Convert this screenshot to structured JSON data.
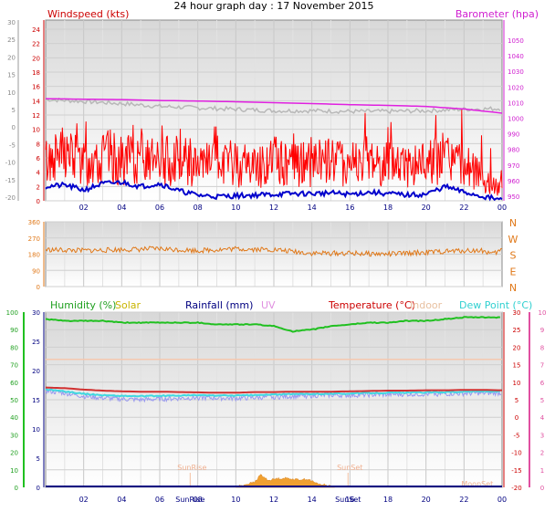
{
  "title": "24 hour graph day : 17 November 2015",
  "chart_data": [
    {
      "type": "line",
      "panel": "wind-barometer",
      "left_label": "Windspeed (kts)",
      "right_label": "Barometer (hpa)",
      "x_ticks": [
        "02",
        "04",
        "06",
        "08",
        "10",
        "12",
        "14",
        "16",
        "18",
        "20",
        "22",
        "00"
      ],
      "outer_left_ticks": [
        "30",
        "25",
        "20",
        "15",
        "10",
        "5",
        "0",
        "-5",
        "-10",
        "-15",
        "-20"
      ],
      "left_ticks": [
        "24",
        "22",
        "20",
        "18",
        "16",
        "14",
        "12",
        "10",
        "8",
        "6",
        "4",
        "2",
        "0"
      ],
      "right_ticks": [
        "1050",
        "1040",
        "1030",
        "1020",
        "1010",
        "1000",
        "990",
        "980",
        "970",
        "960",
        "950"
      ],
      "ylim_left": [
        0,
        25
      ],
      "ylim_right": [
        950,
        1050
      ],
      "series": [
        {
          "color": "#b8b8b8",
          "hours": [
            0,
            2,
            4,
            6,
            8,
            10,
            12,
            14,
            16,
            18,
            20,
            22,
            24
          ],
          "values": [
            14.2,
            13.9,
            13.6,
            13.2,
            13.0,
            12.8,
            12.6,
            12.6,
            12.5,
            12.5,
            12.6,
            12.8,
            12.9
          ]
        },
        {
          "color": "#e020e0",
          "hours": [
            0,
            2,
            4,
            6,
            8,
            10,
            12,
            14,
            16,
            18,
            20,
            22,
            24
          ],
          "values": [
            1006.5,
            1006.2,
            1006.0,
            1005.5,
            1005.2,
            1004.8,
            1004.3,
            1003.8,
            1003.2,
            1002.8,
            1002.2,
            1000.8,
            998.5
          ]
        },
        {
          "color": "#ff0000",
          "hours": [
            0,
            1,
            2,
            3,
            4,
            5,
            6,
            7,
            8,
            9,
            10,
            11,
            12,
            13,
            14,
            15,
            16,
            17,
            18,
            19,
            20,
            21,
            22,
            23,
            24
          ],
          "values": [
            5.5,
            6.8,
            5.2,
            6.5,
            5.4,
            6.2,
            5.0,
            6.4,
            4.6,
            5.0,
            5.3,
            4.9,
            5.5,
            5.0,
            5.5,
            5.7,
            5.2,
            5.9,
            5.2,
            5.0,
            5.2,
            5.8,
            4.9,
            3.2,
            1.6
          ]
        },
        {
          "color": "#0000cc",
          "hours": [
            0,
            1,
            2,
            3,
            4,
            5,
            6,
            7,
            8,
            9,
            10,
            11,
            12,
            13,
            14,
            15,
            16,
            17,
            18,
            19,
            20,
            21,
            22,
            23,
            24
          ],
          "values": [
            2.0,
            2.2,
            1.5,
            2.4,
            2.6,
            2.0,
            2.4,
            1.4,
            0.8,
            0.6,
            0.7,
            0.8,
            0.9,
            1.0,
            1.0,
            1.1,
            0.9,
            1.2,
            1.0,
            0.8,
            0.9,
            2.0,
            1.2,
            0.6,
            0.1
          ]
        }
      ]
    },
    {
      "type": "line",
      "panel": "wind-direction",
      "left_ticks": [
        "360",
        "270",
        "180",
        "90",
        "0"
      ],
      "right_ticks": [
        "N",
        "W",
        "S",
        "E",
        "N"
      ],
      "ylim": [
        0,
        360
      ],
      "series": [
        {
          "color": "#e07818",
          "hours": [
            0,
            2,
            4,
            6,
            8,
            10,
            12,
            14,
            16,
            18,
            20,
            22,
            23,
            23.5,
            24
          ],
          "values": [
            205,
            200,
            205,
            210,
            200,
            210,
            205,
            185,
            185,
            180,
            190,
            200,
            200,
            180,
            205
          ]
        }
      ]
    },
    {
      "type": "line",
      "panel": "temperature-humidity",
      "legend": [
        {
          "label": "Humidity (%)",
          "color": "#20a020"
        },
        {
          "label": "Solar",
          "color": "#c8b400"
        },
        {
          "label": "Rainfall (mm)",
          "color": "#000080"
        },
        {
          "label": "UV",
          "color": "#e090e0"
        },
        {
          "label": "Temperature (°C)",
          "color": "#cc0000"
        },
        {
          "label": "Indoor",
          "color": "#e8c0a0"
        },
        {
          "label": "Dew Point (°C)",
          "color": "#30d0d0"
        }
      ],
      "outer_left_ticks": [
        "100",
        "90",
        "80",
        "70",
        "60",
        "50",
        "40",
        "30",
        "20",
        "10",
        "0"
      ],
      "left_ticks": [
        "30",
        "25",
        "20",
        "15",
        "10",
        "5",
        "0"
      ],
      "right_ticks": [
        "30",
        "25",
        "20",
        "15",
        "10",
        "5",
        "0",
        "-5",
        "-10",
        "-15",
        "-20"
      ],
      "outer_right_ticks": [
        "10",
        "9",
        "8",
        "7",
        "6",
        "5",
        "4",
        "3",
        "2",
        "1",
        "0"
      ],
      "annotations": [
        "SunRise",
        "SunSet",
        "MoonSet"
      ],
      "x_ticks": [
        "02",
        "04",
        "06",
        "SunRise",
        "08",
        "10",
        "12",
        "14",
        "16",
        "SunSet",
        "18",
        "20",
        "22",
        "00"
      ],
      "ylim_humidity": [
        0,
        100
      ],
      "ylim_temperature": [
        -20,
        30
      ],
      "series": [
        {
          "color": "#20c020",
          "hours": [
            0,
            1,
            2,
            3,
            4,
            5,
            6,
            7,
            8,
            9,
            10,
            11,
            12,
            13,
            14,
            15,
            16,
            17,
            18,
            19,
            20,
            21,
            22,
            23,
            24
          ],
          "values": [
            96,
            95,
            95,
            95,
            94,
            94,
            94,
            94,
            94,
            93,
            93,
            93,
            92,
            89,
            90,
            92,
            93,
            94,
            94,
            95,
            95,
            96,
            97,
            97,
            97
          ]
        },
        {
          "color": "#f4c8b0",
          "hours": [
            0,
            24
          ],
          "values": [
            16.5,
            16.5
          ]
        },
        {
          "color": "#d03030",
          "hours": [
            0,
            1,
            2,
            3,
            4,
            5,
            6,
            7,
            8,
            9,
            10,
            11,
            12,
            13,
            14,
            15,
            16,
            17,
            18,
            19,
            20,
            21,
            22,
            23,
            24
          ],
          "values": [
            8.5,
            8.3,
            7.9,
            7.6,
            7.4,
            7.3,
            7.3,
            7.2,
            7.1,
            7.0,
            7.0,
            7.2,
            7.2,
            7.3,
            7.3,
            7.3,
            7.4,
            7.5,
            7.6,
            7.6,
            7.7,
            7.7,
            7.8,
            7.8,
            7.7
          ]
        },
        {
          "color": "#9898f0",
          "hours": [
            0,
            1,
            2,
            3,
            4,
            5,
            6,
            7,
            8,
            9,
            10,
            11,
            12,
            13,
            14,
            15,
            16,
            17,
            18,
            19,
            20,
            21,
            22,
            23,
            24
          ],
          "values": [
            7.5,
            6.9,
            6.0,
            5.5,
            5.2,
            5.0,
            5.2,
            5.4,
            5.6,
            5.5,
            5.4,
            5.6,
            5.8,
            6.0,
            6.2,
            6.3,
            6.3,
            6.4,
            6.5,
            6.6,
            6.6,
            6.7,
            6.8,
            6.9,
            6.9
          ]
        },
        {
          "color": "#40d8e0",
          "hours": [
            0,
            1,
            2,
            3,
            4,
            5,
            6,
            7,
            8,
            9,
            10,
            11,
            12,
            13,
            14,
            15,
            16,
            17,
            18,
            19,
            20,
            21,
            22,
            23,
            24
          ],
          "values": [
            8.0,
            7.4,
            6.7,
            6.3,
            6.1,
            6.0,
            6.1,
            6.2,
            6.3,
            6.2,
            6.2,
            6.3,
            6.5,
            6.6,
            6.7,
            6.7,
            6.8,
            6.9,
            7.0,
            7.0,
            7.1,
            7.2,
            7.3,
            7.4,
            7.3
          ]
        }
      ],
      "solar": {
        "color": "#f0a030",
        "hours": [
          10,
          10.5,
          11,
          11.3,
          11.7,
          12.2,
          12.7,
          13.2,
          13.8,
          14.3,
          14.8,
          15.2
        ],
        "values": [
          0.2,
          0.8,
          1.5,
          3.6,
          2.0,
          2.5,
          2.6,
          2.2,
          2.3,
          1.0,
          0.6,
          0.1
        ]
      }
    }
  ]
}
